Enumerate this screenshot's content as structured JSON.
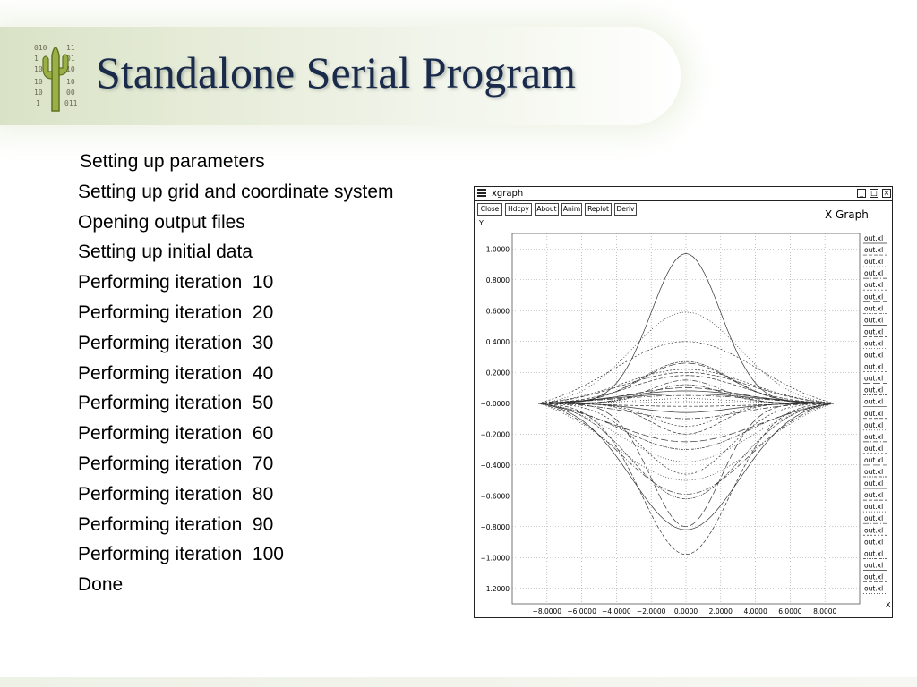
{
  "slide": {
    "title": "Standalone Serial Program",
    "logo_digits": [
      "010",
      "01",
      "101",
      "10",
      "011",
      "10",
      "10",
      "10"
    ],
    "output_lines": [
      "Setting up parameters",
      "Setting up grid and coordinate system",
      "Opening output files",
      "Setting up initial data",
      "Performing iteration  10",
      "Performing iteration  20",
      "Performing iteration  30",
      "Performing iteration  40",
      "Performing iteration  50",
      "Performing iteration  60",
      "Performing iteration  70",
      "Performing iteration  80",
      "Performing iteration  90",
      "Performing iteration  100",
      "Done"
    ]
  },
  "xgraph": {
    "window_title": "xgraph",
    "window_buttons": [
      "_",
      "□",
      "×"
    ],
    "buttons": [
      "Close",
      "Hdcpy",
      "About",
      "Anim",
      "Replot",
      "Deriv"
    ],
    "graph_title": "X Graph",
    "y_axis_label": "Y",
    "x_axis_label": "X",
    "legend_label": "out.xl",
    "legend_count": 31
  },
  "chart_data": {
    "type": "line",
    "title": "X Graph",
    "xlabel": "X",
    "ylabel": "Y",
    "xlim": [
      -10.0,
      10.0
    ],
    "ylim": [
      -1.3,
      1.1
    ],
    "x_ticks": [
      "−8.0000",
      "−6.0000",
      "−4.0000",
      "−2.0000",
      "0.0000",
      "2.0000",
      "4.0000",
      "6.0000",
      "8.0000"
    ],
    "y_ticks": [
      "1.0000",
      "0.8000",
      "0.6000",
      "0.4000",
      "0.2000",
      "−0.0000",
      "−0.2000",
      "−0.4000",
      "−0.6000",
      "−0.8000",
      "−1.0000",
      "−1.2000"
    ],
    "grid": true,
    "legend_position": "right",
    "curve_x_range": [
      -8.5,
      8.5
    ],
    "series_amplitudes": [
      0.97,
      -0.98,
      0.59,
      -0.59,
      0.4,
      -0.8,
      0.27,
      -0.82,
      0.2,
      -0.5,
      0.15,
      -0.46,
      0.1,
      -0.3,
      0.06,
      -0.2,
      0.03,
      -0.1,
      0.22,
      -0.25,
      0.12,
      -0.06,
      0.18,
      -0.38,
      0.05,
      -0.15,
      0.26,
      -0.62,
      0.08,
      -0.02,
      0.01
    ]
  }
}
